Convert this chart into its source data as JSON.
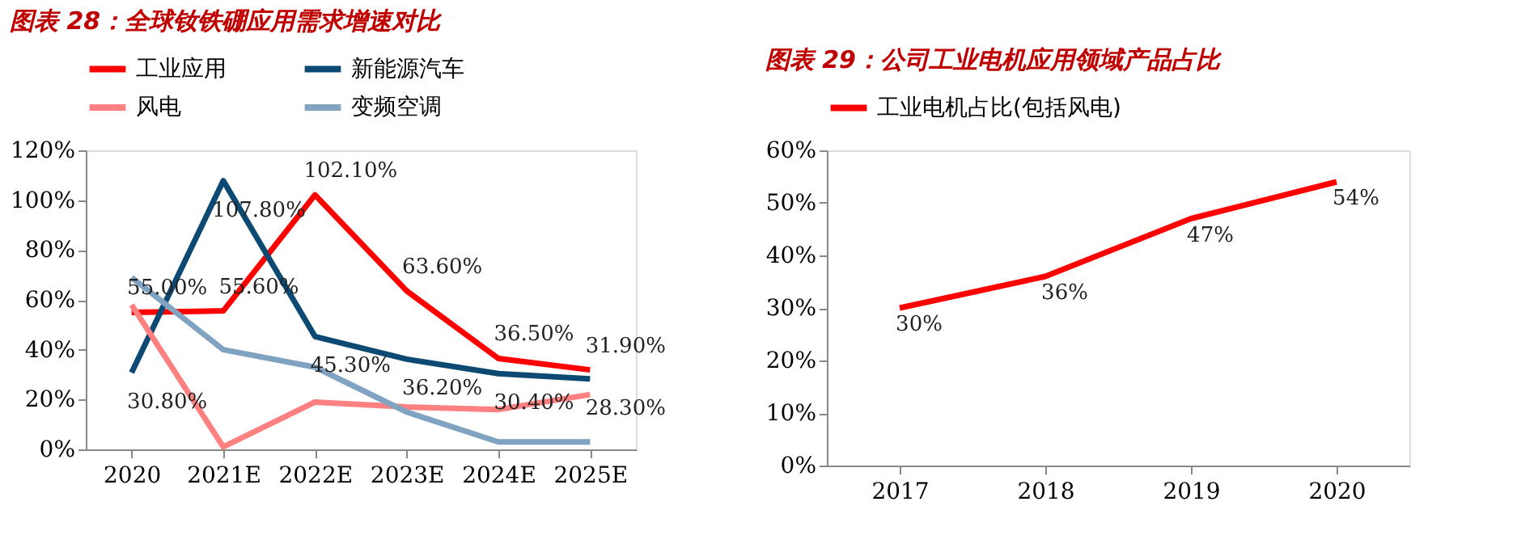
{
  "chart_data": [
    {
      "type": "line",
      "title": "图表 28：全球钕铁硼应用需求增速对比",
      "categories": [
        "2020",
        "2021E",
        "2022E",
        "2023E",
        "2024E",
        "2025E"
      ],
      "series": [
        {
          "name": "工业应用",
          "color": "#ff0000",
          "values": [
            55.0,
            55.6,
            102.1,
            63.6,
            36.5,
            31.9
          ],
          "value_labels": [
            "55.00%",
            "55.60%",
            "102.10%",
            "63.60%",
            "36.50%",
            "31.90%"
          ]
        },
        {
          "name": "新能源汽车",
          "color": "#0d4a73",
          "values": [
            30.8,
            107.8,
            45.3,
            36.2,
            30.4,
            28.3
          ],
          "value_labels": [
            "30.80%",
            "107.80%",
            "45.30%",
            "36.20%",
            "30.40%",
            "28.30%"
          ]
        },
        {
          "name": "风电",
          "color": "#ff8080",
          "values": [
            58,
            1,
            19,
            17,
            16,
            22
          ]
        },
        {
          "name": "变频空调",
          "color": "#7fa3c0",
          "values": [
            69,
            40,
            33,
            15,
            3,
            3
          ]
        }
      ],
      "ylim": [
        0,
        120
      ],
      "yticks": [
        {
          "value": 0,
          "label": "0%"
        },
        {
          "value": 20,
          "label": "20%"
        },
        {
          "value": 40,
          "label": "40%"
        },
        {
          "value": 60,
          "label": "60%"
        },
        {
          "value": 80,
          "label": "80%"
        },
        {
          "value": 100,
          "label": "100%"
        },
        {
          "value": 120,
          "label": "120%"
        }
      ],
      "grid": false,
      "legend": "top"
    },
    {
      "type": "line",
      "title": "图表 29：公司工业电机应用领域产品占比",
      "categories": [
        "2017",
        "2018",
        "2019",
        "2020"
      ],
      "series": [
        {
          "name": "工业电机占比(包括风电)",
          "color": "#ff0000",
          "values": [
            30,
            36,
            47,
            54
          ],
          "value_labels": [
            "30%",
            "36%",
            "47%",
            "54%"
          ]
        }
      ],
      "ylim": [
        0,
        60
      ],
      "yticks": [
        {
          "value": 0,
          "label": "0%"
        },
        {
          "value": 10,
          "label": "10%"
        },
        {
          "value": 20,
          "label": "20%"
        },
        {
          "value": 30,
          "label": "30%"
        },
        {
          "value": 40,
          "label": "40%"
        },
        {
          "value": 50,
          "label": "50%"
        },
        {
          "value": 60,
          "label": "60%"
        }
      ],
      "grid": false,
      "legend": "top left"
    }
  ]
}
